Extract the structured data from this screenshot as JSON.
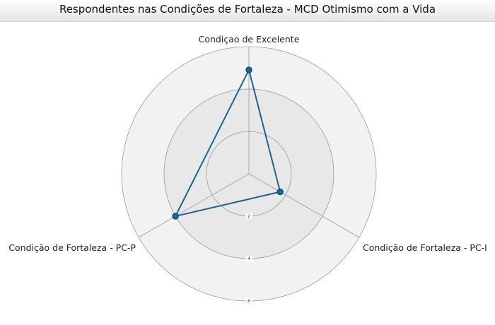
{
  "chart_data": {
    "type": "radar",
    "title": "Respondentes nas Condições de Fortaleza - MCD Otimismo com a Vida",
    "axes": [
      "Condiçao de Excelente",
      "Condição de Fortaleza - PC-I",
      "Condição de Fortaleza - PC-P"
    ],
    "series": [
      {
        "name": "MCD Otimismo com a Vida",
        "color": "#1a6496",
        "values": [
          4.9,
          1.7,
          4.0
        ]
      }
    ],
    "rlim": [
      0,
      6
    ],
    "ticks": [
      2,
      4,
      6
    ],
    "grid": true
  }
}
